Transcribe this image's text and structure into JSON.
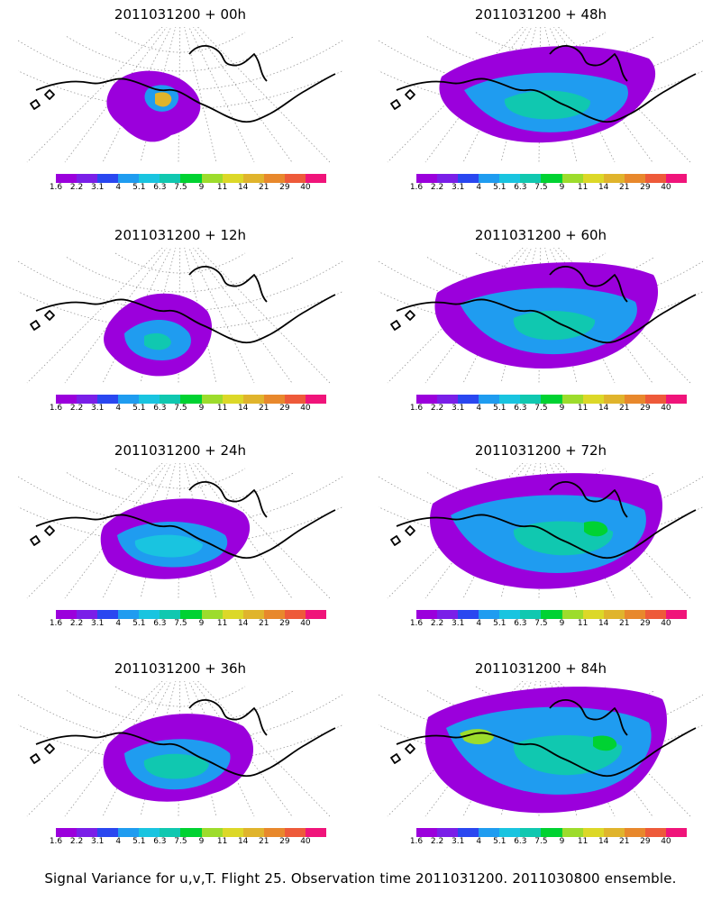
{
  "chart_data": {
    "type": "heatmap",
    "caption": "Signal Variance for u,v,T. Flight 25. Observation time 2011031200. 2011030800 ensemble.",
    "colorbar": {
      "labels": [
        "1.6",
        "2.2",
        "3.1",
        "4",
        "5.1",
        "6.3",
        "7.5",
        "9",
        "11",
        "14",
        "21",
        "29",
        "40"
      ],
      "colors": [
        "#9b00dc",
        "#7a1fe8",
        "#2a47f0",
        "#1f9cf0",
        "#19c4e0",
        "#10c8b0",
        "#00d232",
        "#9ddc2c",
        "#dcd828",
        "#e0b42c",
        "#e8882c",
        "#ee5a3a",
        "#f0147a"
      ]
    },
    "panels": [
      {
        "title": "2011031200 + 00h",
        "lead_hours": 0,
        "max_level": "14-21",
        "coverage": "small"
      },
      {
        "title": "2011031200 + 12h",
        "lead_hours": 12,
        "max_level": "5.1-6.3",
        "coverage": "small-medium"
      },
      {
        "title": "2011031200 + 24h",
        "lead_hours": 24,
        "max_level": "4-5.1",
        "coverage": "medium"
      },
      {
        "title": "2011031200 + 36h",
        "lead_hours": 36,
        "max_level": "5.1-6.3",
        "coverage": "medium"
      },
      {
        "title": "2011031200 + 48h",
        "lead_hours": 48,
        "max_level": "5.1-6.3",
        "coverage": "large"
      },
      {
        "title": "2011031200 + 60h",
        "lead_hours": 60,
        "max_level": "5.1-6.3",
        "coverage": "large"
      },
      {
        "title": "2011031200 + 72h",
        "lead_hours": 72,
        "max_level": "7.5-9",
        "coverage": "large"
      },
      {
        "title": "2011031200 + 84h",
        "lead_hours": 84,
        "max_level": "9-11",
        "coverage": "largest"
      }
    ]
  }
}
